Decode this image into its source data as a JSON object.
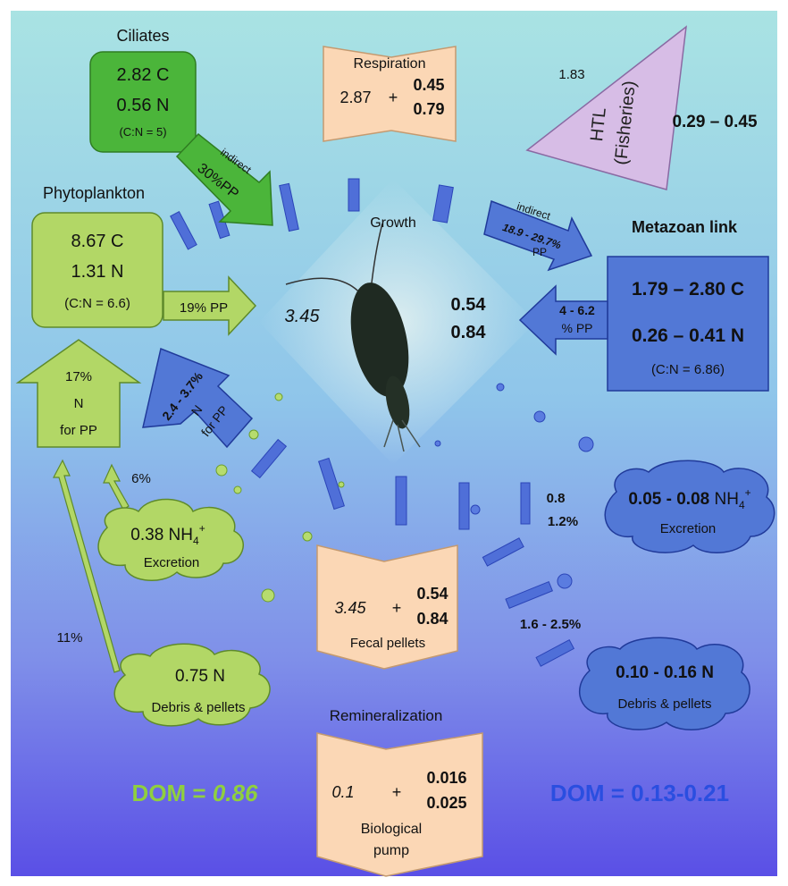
{
  "ciliates": {
    "title": "Ciliates",
    "c": "2.82 C",
    "n": "0.56 N",
    "ratio": "(C:N = 5)",
    "arrow_top": "indirect",
    "arrow_bottom": "30%PP"
  },
  "phytoplankton": {
    "title": "Phytoplankton",
    "c": "8.67 C",
    "n": "1.31 N",
    "ratio": "(C:N = 6.6)",
    "arrow_label": "19% PP"
  },
  "respiration": {
    "title": "Respiration",
    "left": "2.87",
    "plus": "+",
    "top": "0.45",
    "bottom": "0.79"
  },
  "htl": {
    "line1": "HTL",
    "line2": "(Fisheries)",
    "value_left": "1.83",
    "value_right": "0.29 – 0.45"
  },
  "growth": {
    "label": "Growth",
    "left": "3.45",
    "top": "0.54",
    "bottom": "0.84"
  },
  "metazoan": {
    "title": "Metazoan link",
    "c": "1.79 – 2.80  C",
    "n": "0.26 – 0.41 N",
    "ratio": "(C:N = 6.86)",
    "in_top": "indirect",
    "in_mid": "18.9 - 29.7%",
    "in_bottom": "PP",
    "out_top": "4 - 6.2",
    "out_bottom": "% PP"
  },
  "n_for_pp_green": {
    "pct": "17%",
    "n": "N",
    "for": "for PP"
  },
  "n_for_pp_blue": {
    "pct": "2.4 - 3.7%",
    "n": "N",
    "for": "for PP"
  },
  "flow_6": "6%",
  "flow_11": "11%",
  "excretion_green": {
    "value": "0.38 NH",
    "sub": "4",
    "sup": "+",
    "label": "Excretion"
  },
  "debris_green": {
    "value": "0.75 N",
    "label": "Debris & pellets"
  },
  "fecal": {
    "left": "3.45",
    "plus": "+",
    "top": "0.54",
    "bottom": "0.84",
    "label": "Fecal pellets"
  },
  "excretion_pct": {
    "top": "0.8",
    "bottom": "1.2%"
  },
  "debris_pct": "1.6 - 2.5%",
  "excretion_blue": {
    "value": "0.05 - 0.08",
    "unit": " NH",
    "sub": "4",
    "sup": "+",
    "label": "Excretion"
  },
  "debris_blue": {
    "value": "0.10 - 0.16 N",
    "label": "Debris & pellets"
  },
  "remineralization": {
    "title": "Remineralization",
    "left": "0.1",
    "plus": "+",
    "top": "0.016",
    "bottom": "0.025",
    "label1": "Biological",
    "label2": "pump"
  },
  "dom_green": {
    "prefix": "DOM = ",
    "value": "0.86"
  },
  "dom_blue": "DOM = 0.13-0.21",
  "colors": {
    "green_dark": "#4bb53a",
    "green_light": "#b2d766",
    "blue_box": "#5278d6",
    "peach": "#fbd7b5",
    "purple": "#d7bde6",
    "dom_green": "#8fcf3f",
    "dom_blue": "#2a4ee0"
  }
}
